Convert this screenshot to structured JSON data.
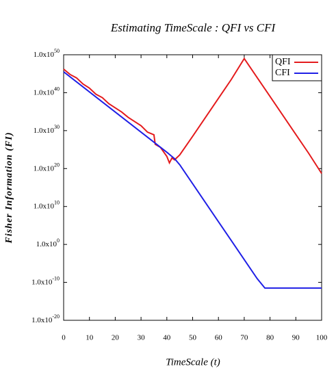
{
  "chart_data": {
    "type": "line",
    "title": "Estimating TimeScale : QFI vs CFI",
    "x_label": "TimeScale (t)",
    "y_label": "Fisher Information (FI)",
    "log_y": true,
    "grid": false,
    "legend": "upper right",
    "xlim": [
      0,
      100
    ],
    "xticks": [
      0,
      10,
      20,
      30,
      40,
      50,
      60,
      70,
      80,
      90,
      100
    ],
    "ylim": [
      1e-20,
      1e+50
    ],
    "yticks": [
      {
        "value": 1e-20,
        "label": "1.0x10",
        "exponent": "-20"
      },
      {
        "value": 1e-10,
        "label": "1.0x10",
        "exponent": "-10"
      },
      {
        "value": 1,
        "label": "1.0x10",
        "exponent": "0"
      },
      {
        "value": 10000000000.0,
        "label": "1.0x10",
        "exponent": "10"
      },
      {
        "value": 1e+20,
        "label": "1.0x10",
        "exponent": "20"
      },
      {
        "value": 1e+30,
        "label": "1.0x10",
        "exponent": "30"
      },
      {
        "value": 1e+40,
        "label": "1.0x10",
        "exponent": "40"
      },
      {
        "value": 1e+50,
        "label": "1.0x10",
        "exponent": "50"
      }
    ],
    "series": [
      {
        "name": "QFI",
        "color": "#e41a1c",
        "x": [
          0,
          2.5,
          5,
          7.5,
          10,
          12.5,
          15,
          17.5,
          20,
          22.5,
          25,
          27.5,
          30,
          32.5,
          35,
          35.5,
          37.5,
          40,
          41,
          42,
          43,
          45,
          50,
          55,
          60,
          65,
          70,
          75,
          80,
          85,
          90,
          95,
          100
        ],
        "values": [
          1.6e+46,
          6.3e+44,
          7.9e+43,
          2e+42,
          1.6e+41,
          4e+39,
          5e+38,
          1.3e+37,
          1e+36,
          7.9e+34,
          3.2e+33,
          2.5e+32,
          2e+31,
          4e+29,
          7.9e+28,
          2.5e+26,
          4e+25,
          1.6e+23,
          3.2e+21,
          6.3e+22,
          2e+22,
          4e+23,
          3.2e+28,
          3.2e+33,
          3.2e+38,
          3.2e+43,
          1e+49,
          1e+44,
          1e+39,
          1e+34,
          1e+29,
          1e+24,
          5e+18
        ]
      },
      {
        "name": "CFI",
        "color": "#1f1fe6",
        "x": [
          0,
          10,
          20,
          30,
          40,
          43,
          45,
          50,
          55,
          60,
          65,
          70,
          75,
          78,
          80,
          90,
          100
        ],
        "values": [
          3.2e+45,
          1.6e+40,
          7.9e+34,
          4e+29,
          2e+24,
          4e+22,
          1e+21,
          1e+16,
          100000000000.0,
          1000000.0,
          10,
          0.0001,
          1e-09,
          3.2e-12,
          3.2e-12,
          3.2e-12,
          3.2e-12
        ]
      }
    ]
  }
}
